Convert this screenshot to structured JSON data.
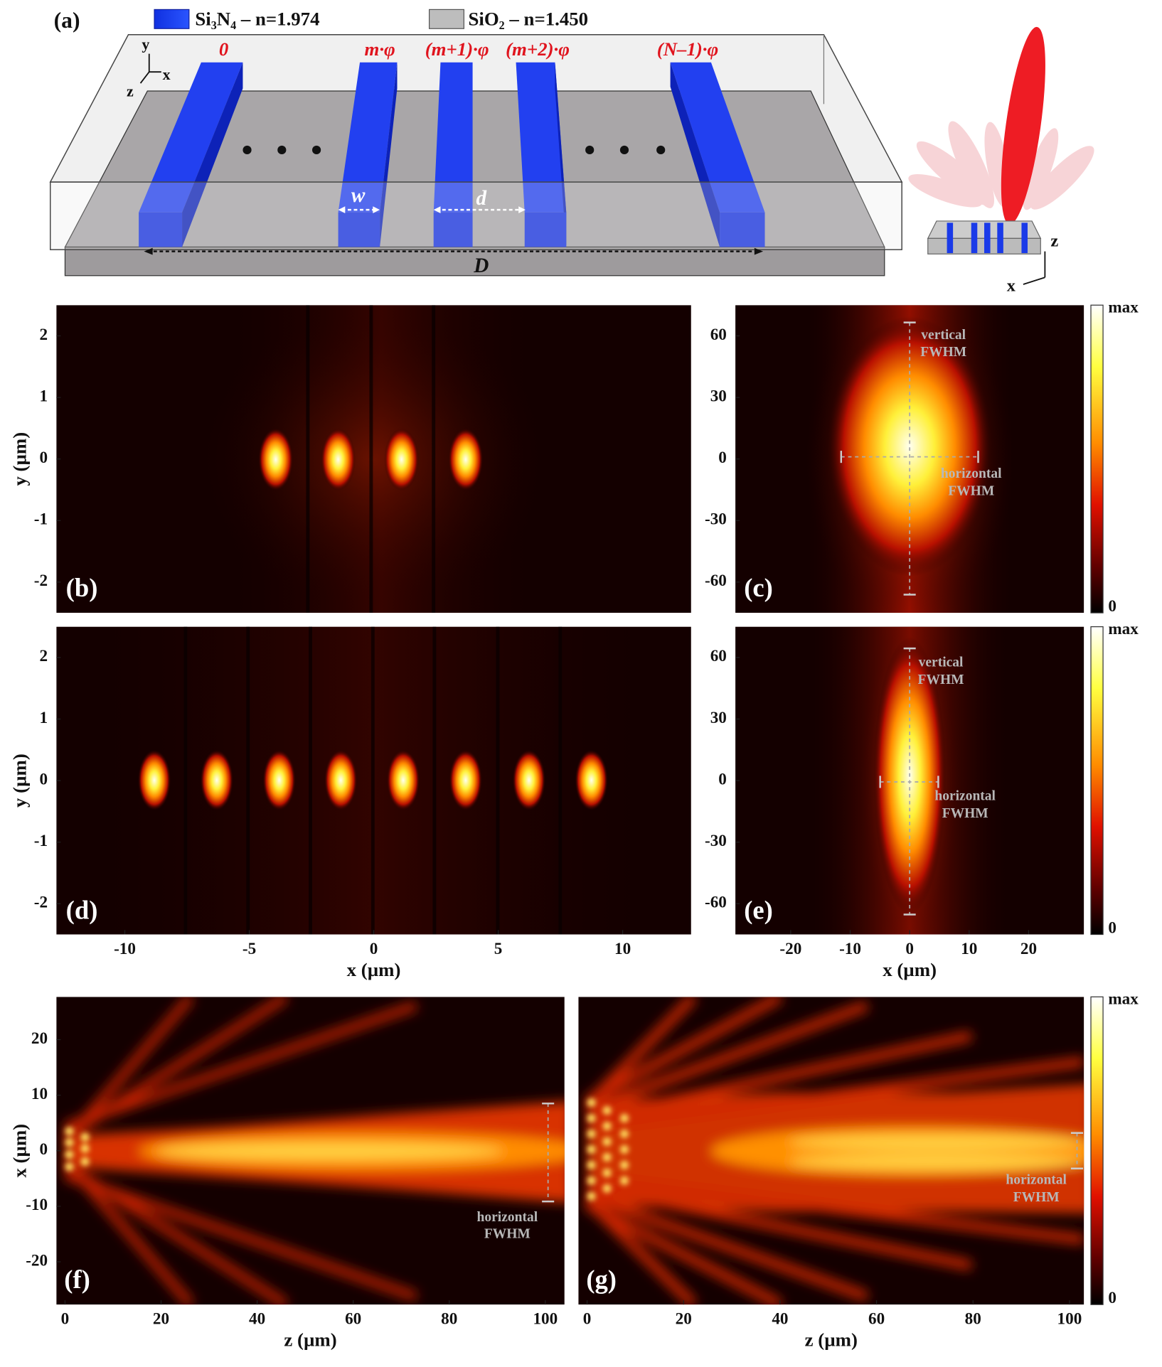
{
  "panel_a": {
    "label": "(a)",
    "legend": [
      "Si₃N₄  –  n=1.974",
      "SiO₂  –  n=1.450"
    ],
    "phases": [
      "0",
      "m·φ",
      "(m+1)·φ",
      "(m+2)·φ",
      "(N–1)·φ"
    ],
    "dimensions": [
      "w",
      "d",
      "D"
    ],
    "axes": [
      "y",
      "x",
      "z"
    ],
    "inset_axes": [
      "z",
      "x"
    ]
  },
  "panels": {
    "b": {
      "label": "(b)",
      "ylabel": "y (µm)",
      "ylim": [
        -2.5,
        2.5
      ],
      "yticks": [
        -2,
        -1,
        0,
        1,
        2
      ]
    },
    "c": {
      "label": "(c)",
      "ylim": [
        -75,
        75
      ],
      "yticks": [
        -60,
        -30,
        0,
        30,
        60
      ],
      "annotations": [
        "vertical",
        "FWHM",
        "horizontal",
        "FWHM"
      ],
      "colorbar": {
        "max": "max",
        "min": 0
      }
    },
    "d": {
      "label": "(d)",
      "ylabel": "y (µm)",
      "xlabel": "x (µm)",
      "xlim": [
        -12.75,
        12.75
      ],
      "xticks": [
        -10,
        -5,
        0,
        5,
        10
      ],
      "ylim": [
        -2.5,
        2.5
      ],
      "yticks": [
        -2,
        -1,
        0,
        1,
        2
      ]
    },
    "e": {
      "label": "(e)",
      "xlabel": "x (µm)",
      "xlim": [
        -29.3,
        29.3
      ],
      "xticks": [
        -20,
        -10,
        0,
        10,
        20
      ],
      "ylim": [
        -75,
        75
      ],
      "yticks": [
        -60,
        -30,
        0,
        30,
        60
      ],
      "annotations": [
        "vertical",
        "FWHM",
        "horizontal",
        "FWHM"
      ],
      "colorbar": {
        "max": "max",
        "min": 0
      }
    },
    "f": {
      "label": "(f)",
      "ylabel": "x (µm)",
      "xlabel": "z (µm)",
      "xlim": [
        -1.8,
        104
      ],
      "xticks": [
        0,
        20,
        40,
        60,
        80,
        100
      ],
      "ylim": [
        -27.7,
        27.7
      ],
      "yticks": [
        -20,
        -10,
        0,
        10,
        20
      ],
      "annotations": [
        "horizontal",
        "FWHM"
      ]
    },
    "g": {
      "label": "(g)",
      "xlabel": "z (µm)",
      "xlim": [
        -1.8,
        103
      ],
      "xticks": [
        0,
        20,
        40,
        60,
        80,
        100
      ],
      "annotations": [
        "horizontal",
        "FWHM"
      ],
      "colorbar": {
        "max": "max",
        "min": 0
      }
    }
  }
}
